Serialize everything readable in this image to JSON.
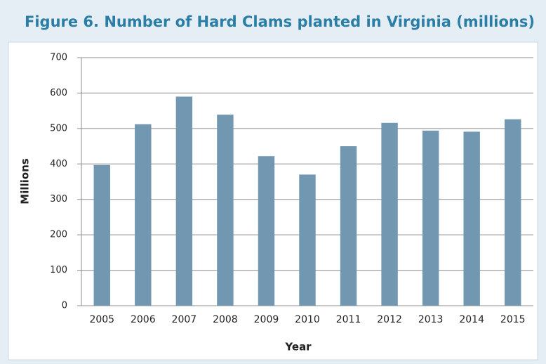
{
  "chart_data": {
    "type": "bar",
    "title": "Figure 6. Number of Hard Clams planted in Virginia (millions)",
    "x_label": "Year",
    "y_label": "Millions",
    "categories": [
      "2005",
      "2006",
      "2007",
      "2008",
      "2009",
      "2010",
      "2011",
      "2012",
      "2013",
      "2014",
      "2015"
    ],
    "values": [
      397,
      512,
      590,
      539,
      422,
      370,
      450,
      516,
      494,
      491,
      526
    ],
    "color": "#7198b0",
    "ylim": [
      0,
      700
    ],
    "yticks": [
      0,
      100,
      200,
      300,
      400,
      500,
      600,
      700
    ],
    "grid": true
  }
}
